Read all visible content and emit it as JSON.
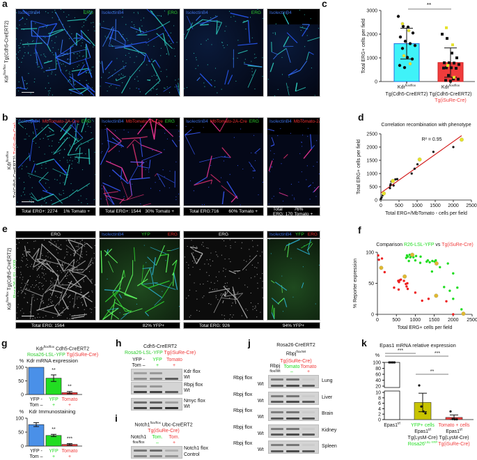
{
  "panels": {
    "a": {
      "label": "a",
      "side": {
        "line1": "Kdr",
        "sup": "flox/flox",
        "line2": "Tg(Cdh5-CreERT2)"
      },
      "images": [
        {
          "ch1": "IsolectinB4",
          "ch2": "ERG"
        },
        {
          "ch1": "IsolectinB4",
          "ch2": "ERG"
        },
        {
          "ch1": "IsolectinB4",
          "ch2": "ERG"
        },
        {
          "ch1": "IsolectinB4"
        }
      ]
    },
    "b": {
      "label": "b",
      "side": {
        "line1": "Kdr",
        "sup": "flox/flox",
        "line2": "Tg(Cdh5-CreERT2)",
        "line2_red": "Tg(iSuRe-Cre)"
      },
      "images": [
        {
          "ch1": "IsolectinB4",
          "ch2": "MbTomato-2A-Cre",
          "ch3": "ERG",
          "total": "Total ERG+: 2274",
          "pct": "1% Tomato +"
        },
        {
          "ch1": "IsolectinB4",
          "ch2": "MbTomato-2A-Cre",
          "ch3": "ERG",
          "total": "Total ERG+: 1544",
          "pct": "30% Tomato +"
        },
        {
          "ch1": "IsolectinB4",
          "ch2": "MbTomato-2A-Cre",
          "ch3": "ERG",
          "total": "Total ERG:716",
          "pct": "60% Tomato +"
        },
        {
          "ch1": "IsolectinB4",
          "ch2": "MbTomato-2A-Cre",
          "ch3": "ERG",
          "total": "Total ERG: 170",
          "pct": "76% Tomato +"
        }
      ]
    },
    "e": {
      "label": "e",
      "side": {
        "line1": "Kdr",
        "sup": "flox/flox",
        "line1b": "Tg(Cdh5-CreERT2)",
        "line2_green": "Rosa26-LSL-YFP"
      },
      "images": [
        {
          "header": "ERG"
        },
        {
          "ch1": "IsolectinB4",
          "ch2": "YFP",
          "ch3": "ERG"
        },
        {
          "header": "ERG"
        },
        {
          "ch1": "IsolectinB4",
          "ch2": "YFP",
          "ch3": "ERG"
        }
      ],
      "captions": [
        {
          "total": "Total ERG: 1564",
          "pct": "82% YFP+"
        },
        {
          "total": "Total ERG: 926",
          "pct": "94% YFP+"
        }
      ]
    },
    "c": {
      "label": "c"
    },
    "d": {
      "label": "d"
    },
    "f": {
      "label": "f"
    },
    "g": {
      "label": "g",
      "title1": "Kdr",
      "title1_sup": "flox/flox",
      "title1b": " Cdh5-CreERT2",
      "title2_green": "Rosa26-LSL-YFP",
      "title2_red": "Tg(iSuRe-Cre)"
    },
    "h": {
      "label": "h",
      "title1": "Cdh5-CreERT2",
      "title2_green": "Rosa26-LSL-YFP",
      "title2_red": "Tg(iSuRe-Cre)",
      "lanes": [
        {
          "top": "YFP -",
          "bottom": "Tom –"
        },
        {
          "top": "YFP",
          "bottom": "+"
        },
        {
          "top": "Tomato",
          "bottom": "+"
        }
      ],
      "gels": [
        {
          "l1": "Kdr flox",
          "l2": "Wt"
        },
        {
          "l1": "Rbpj flox",
          "l2": "Wt"
        },
        {
          "l1": "Nmyc flox",
          "l2": "Wt"
        }
      ]
    },
    "i": {
      "label": "i",
      "title1": "Notch1",
      "title1_sup": "flox/flox",
      "title1b": " Ubc-CreERT2",
      "title2_red": "Tg(iSuRe-Cre)",
      "lanes": [
        {
          "top": "Notch1",
          "bottom": "flox/flox"
        },
        {
          "top": "Tom.",
          "bottom": "–"
        },
        {
          "top": "Tom.",
          "bottom": "+"
        }
      ],
      "gel": {
        "l1": "Notch1 flox",
        "l2": "Control"
      }
    },
    "j": {
      "label": "j",
      "title1": "Rosa26-CreERT2",
      "title2": "Rbpj",
      "title2_sup": "flox/Wt",
      "title3_red": "Tg(iSuRe-Cre)",
      "lanes": [
        {
          "top": "Rbpj",
          "bottom": "flox/Wt"
        },
        {
          "top": "Tomato",
          "bottom": "–"
        },
        {
          "top": "Tomato",
          "bottom": "+"
        }
      ],
      "row_l1": "Rbpj flox",
      "row_l2": "Wt",
      "tissues": [
        "Lung",
        "Liver",
        "Brain",
        "Kidney",
        "Spleen"
      ]
    },
    "k": {
      "label": "k"
    }
  },
  "colors": {
    "cyan": "#3ff2f8",
    "red": "#f03c3c",
    "blue": "#4a90e8",
    "green": "#22dd22",
    "olive": "#c8c400",
    "yellow": "#e6e22a"
  },
  "chart_data": [
    {
      "id": "c",
      "type": "bar",
      "title": "",
      "ylabel": "Total ERG+ cells per field",
      "ylim": [
        0,
        3000
      ],
      "yticks": [
        0,
        1000,
        2000,
        3000
      ],
      "categories": [
        {
          "l1": "Kdr",
          "sup": "flox/flox",
          "l2": "Tg(Cdh5-CreERT2)"
        },
        {
          "l1": "Kdr",
          "sup": "flox/flox",
          "l2": "Tg(Cdh5-CreERT2)",
          "l3_red": "Tg(iSuRe-Cre)"
        }
      ],
      "values": [
        1600,
        800
      ],
      "errors": [
        650,
        620
      ],
      "significance": "**",
      "points": [
        [
          2750,
          2330,
          2300,
          2050,
          1880,
          1700,
          1600,
          1520,
          1400,
          1020,
          950,
          680,
          590
        ],
        [
          2000,
          1820,
          1200,
          1000,
          790,
          790,
          780,
          720,
          580,
          580,
          560,
          570,
          260,
          110,
          100,
          50,
          20
        ]
      ],
      "points_yellow": [
        [
          2440,
          2150,
          1090,
          750
        ],
        [
          2270,
          1550,
          680,
          180
        ]
      ]
    },
    {
      "id": "d",
      "type": "scatter",
      "title": "Correlation recombination with phenotype",
      "xlabel": "Total ERG+/MbTomato - cells per field",
      "ylabel": "Total ERG+ cells per field",
      "xlim": [
        0,
        2500
      ],
      "ylim": [
        0,
        2500
      ],
      "xticks": [
        0,
        500,
        1000,
        1500,
        2000,
        2500
      ],
      "yticks": [
        0,
        500,
        1000,
        1500,
        2000,
        2500
      ],
      "annotation": "R² = 0.95",
      "series": [
        {
          "name": "black",
          "points": [
            [
              0,
              50
            ],
            [
              20,
              100
            ],
            [
              50,
              180
            ],
            [
              250,
              450
            ],
            [
              260,
              550
            ],
            [
              270,
              600
            ],
            [
              290,
              700
            ],
            [
              350,
              550
            ],
            [
              400,
              780
            ],
            [
              450,
              790
            ],
            [
              850,
              1000
            ],
            [
              930,
              1180
            ],
            [
              1010,
              1350
            ],
            [
              1450,
              1820
            ],
            [
              2000,
              2000
            ]
          ]
        },
        {
          "name": "yellow",
          "points": [
            [
              80,
              250
            ],
            [
              330,
              720
            ],
            [
              1070,
              1530
            ],
            [
              2230,
              2280
            ]
          ]
        }
      ],
      "fit": [
        [
          0,
          270
        ],
        [
          2230,
          2430
        ]
      ]
    },
    {
      "id": "f",
      "type": "scatter",
      "title_prefix": "Comparison ",
      "title_green": "R26-LSL-YFP",
      "title_mid": " vs ",
      "title_red": "Tg(iSuRe-Cre)",
      "xlabel": "Total ERG+ cells per field",
      "ylabel": "% Reporter expression",
      "xlim": [
        0,
        2500
      ],
      "ylim": [
        0,
        100
      ],
      "xticks": [
        0,
        500,
        1000,
        1500,
        2000,
        2500
      ],
      "yticks": [
        0,
        50,
        100
      ],
      "series": [
        {
          "name": "red",
          "points": [
            [
              20,
              95
            ],
            [
              40,
              88
            ],
            [
              120,
              90
            ],
            [
              190,
              68
            ],
            [
              440,
              43
            ],
            [
              550,
              54
            ],
            [
              560,
              40
            ],
            [
              570,
              52
            ],
            [
              590,
              55
            ],
            [
              620,
              56
            ],
            [
              700,
              54
            ],
            [
              750,
              49
            ],
            [
              770,
              45
            ],
            [
              790,
              50
            ],
            [
              800,
              41
            ],
            [
              1000,
              35
            ],
            [
              1180,
              22
            ],
            [
              1350,
              25
            ],
            [
              1820,
              21
            ],
            [
              2000,
              0
            ]
          ]
        },
        {
          "name": "green",
          "points": [
            [
              760,
              91
            ],
            [
              780,
              95
            ],
            [
              800,
              93
            ],
            [
              830,
              86
            ],
            [
              850,
              96
            ],
            [
              870,
              92
            ],
            [
              900,
              94
            ],
            [
              950,
              92
            ],
            [
              1000,
              87
            ],
            [
              1020,
              94
            ],
            [
              1130,
              83
            ],
            [
              1140,
              93
            ],
            [
              1300,
              85
            ],
            [
              1330,
              87
            ],
            [
              1380,
              84
            ],
            [
              1450,
              86
            ],
            [
              1510,
              85
            ],
            [
              1540,
              87
            ],
            [
              1440,
              69
            ],
            [
              1650,
              76
            ],
            [
              1860,
              82
            ],
            [
              2000,
              66
            ],
            [
              1760,
              44
            ],
            [
              1910,
              38
            ],
            [
              2110,
              43
            ],
            [
              2000,
              25
            ],
            [
              2220,
              8
            ]
          ]
        },
        {
          "name": "yellow",
          "points": [
            [
              100,
              75
            ],
            [
              720,
              61
            ],
            [
              920,
              96
            ],
            [
              1560,
              82
            ],
            [
              1550,
              30
            ],
            [
              2270,
              1
            ]
          ]
        }
      ]
    },
    {
      "id": "g1",
      "type": "bar",
      "title": "Kdr mRNA expression",
      "ylabel": "%",
      "ylim": [
        0,
        100
      ],
      "yticks": [
        0,
        50,
        100
      ],
      "categories": [
        {
          "top": "YFP -",
          "bottom": "Tom –"
        },
        {
          "top": "YFP",
          "bottom": "+"
        },
        {
          "top": "Tomato",
          "bottom": "+"
        }
      ],
      "values": [
        100,
        60,
        7
      ],
      "errors": [
        0,
        12,
        4
      ],
      "significance": [
        "",
        "**",
        "**"
      ]
    },
    {
      "id": "g2",
      "type": "bar",
      "title": "Kdr Immunostaining",
      "ylabel": "%",
      "ylim": [
        0,
        100
      ],
      "yticks": [
        0,
        50,
        100
      ],
      "categories": [
        {
          "top": "YFP -",
          "bottom": "Tom –"
        },
        {
          "top": "YFP",
          "bottom": "+"
        },
        {
          "top": "Tomato",
          "bottom": "+"
        }
      ],
      "values": [
        77,
        38,
        6
      ],
      "errors": [
        7,
        4,
        3
      ],
      "significance": [
        "",
        "**",
        "***"
      ]
    },
    {
      "id": "k",
      "type": "bar",
      "title": "Epas1 mRNA relative expression",
      "ylabel": "%",
      "ylim_upper": [
        20,
        100
      ],
      "ylim_lower": [
        0,
        10
      ],
      "yticks_upper": [
        20,
        40,
        60,
        80,
        100
      ],
      "yticks_lower": [
        0,
        2,
        4,
        6,
        8,
        10
      ],
      "categories": [
        {
          "l1": "Epas1",
          "sup": "f/f"
        },
        {
          "l0_green": "YFP+ cells",
          "l1": "Epas1",
          "sup": "f/f",
          "l2": "Tg(LysM-Cre)",
          "l3_green": "Rosa26",
          "l3_sup": "LSL-YFP"
        },
        {
          "l0_red": "Tomato + cells",
          "l1": "Epas1",
          "sup": "f/f",
          "l2": "Tg(LysM-Cre)",
          "l3_red": "Tg(iSuRe-Cre)"
        }
      ],
      "values": [
        100,
        6.3,
        0.8
      ],
      "errors": [
        0,
        3.4,
        0.9
      ],
      "points": [
        [
          100,
          100,
          100,
          100
        ],
        [
          15,
          4.8,
          3,
          2.3
        ],
        [
          3,
          0.2,
          0.1,
          0.1
        ]
      ],
      "significance": [
        {
          "pair": [
            0,
            1
          ],
          "label": "***"
        },
        {
          "pair": [
            0,
            2
          ],
          "label": "***"
        },
        {
          "pair": [
            1,
            2
          ],
          "label": "**"
        }
      ]
    }
  ]
}
